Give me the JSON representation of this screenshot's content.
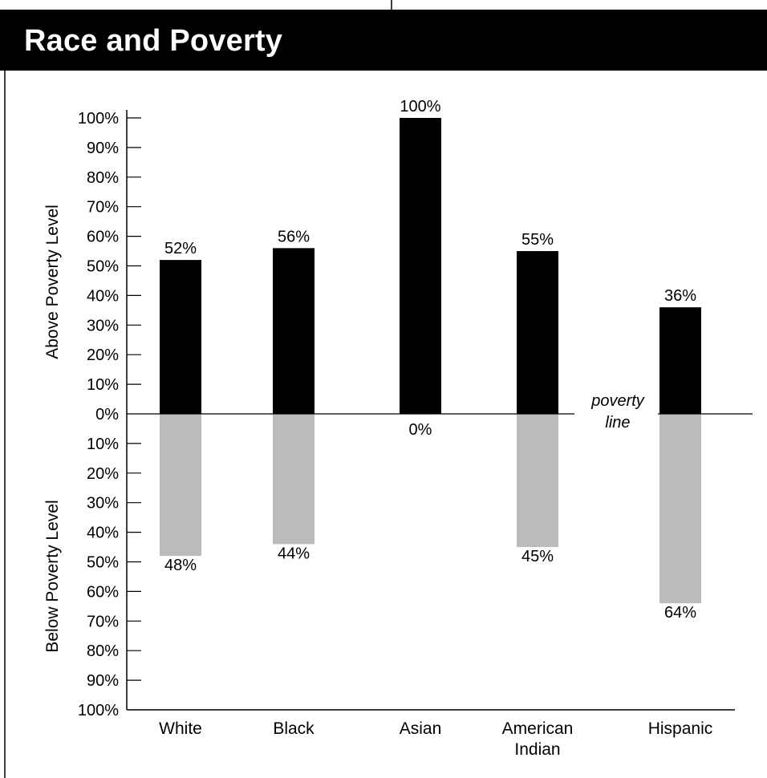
{
  "title": "Race and Poverty",
  "chart_data": {
    "type": "bar",
    "title": "Race and Poverty",
    "categories": [
      "White",
      "Black",
      "Asian",
      "American Indian",
      "Hispanic"
    ],
    "category_lines": [
      [
        "White"
      ],
      [
        "Black"
      ],
      [
        "Asian"
      ],
      [
        "American",
        "Indian"
      ],
      [
        "Hispanic"
      ]
    ],
    "series": [
      {
        "name": "Above Poverty Level",
        "values": [
          52,
          56,
          100,
          55,
          36
        ],
        "labels": [
          "52%",
          "56%",
          "100%",
          "55%",
          "36%"
        ],
        "color": "#000000"
      },
      {
        "name": "Below Poverty Level",
        "values": [
          48,
          44,
          0,
          45,
          64
        ],
        "labels": [
          "48%",
          "44%",
          "0%",
          "45%",
          "64%"
        ],
        "color": "#bbbbbb"
      }
    ],
    "upper_ylabel": "Above Poverty Level",
    "lower_ylabel": "Below Poverty Level",
    "upper_ticks": [
      "100%",
      "90%",
      "80%",
      "70%",
      "60%",
      "50%",
      "40%",
      "30%",
      "20%",
      "10%"
    ],
    "zero_tick": "0%",
    "lower_ticks": [
      "10%",
      "20%",
      "30%",
      "40%",
      "50%",
      "60%",
      "70%",
      "80%",
      "90%",
      "100%"
    ],
    "ylim": [
      -100,
      100
    ],
    "baseline_annotation": [
      "poverty",
      "line"
    ]
  }
}
